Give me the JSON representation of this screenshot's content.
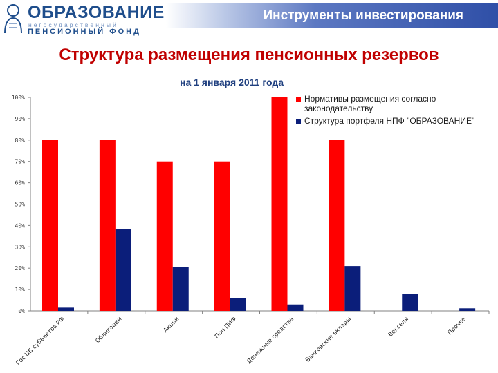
{
  "header": {
    "logo_main": "ОБРАЗОВАНИЕ",
    "logo_sub": "негосударственный",
    "logo_sub2": "ПЕНСИОННЫЙ ФОНД",
    "banner_title": "Инструменты инвестирования"
  },
  "slide_title": "Структура размещения пенсионных резервов",
  "chart_title": "на 1 января 2011 года",
  "colors": {
    "brand": "#1f4e8c",
    "title": "#c00000",
    "series_norm": "#ff0000",
    "series_portfolio": "#0b1e7a"
  },
  "legend": [
    {
      "label": "Нормативы размещения согласно законодательству"
    },
    {
      "label": "Структура портфеля НПФ \"ОБРАЗОВАНИЕ\""
    }
  ],
  "chart_data": {
    "type": "bar",
    "title": "на 1 января 2011 года",
    "xlabel": "",
    "ylabel": "",
    "ylim": [
      0,
      100
    ],
    "yticks": [
      "0%",
      "10%",
      "20%",
      "30%",
      "40%",
      "50%",
      "60%",
      "70%",
      "80%",
      "90%",
      "100%"
    ],
    "grid": false,
    "legend_position": "top-right",
    "categories": [
      "Гос ЦБ субъектов РФ",
      "Облигации",
      "Акции",
      "Пои ПИФ",
      "Денежные средства",
      "Банковские вклады",
      "Векселя",
      "Прочее"
    ],
    "series": [
      {
        "name": "Нормативы размещения согласно законодательству",
        "color": "#ff0000",
        "values": [
          80,
          80,
          70,
          70,
          100,
          80,
          0,
          0
        ]
      },
      {
        "name": "Структура портфеля НПФ \"ОБРАЗОВАНИЕ\"",
        "color": "#0b1e7a",
        "values": [
          1.5,
          38.5,
          20.5,
          6,
          3,
          21,
          8,
          1.2
        ]
      }
    ]
  }
}
